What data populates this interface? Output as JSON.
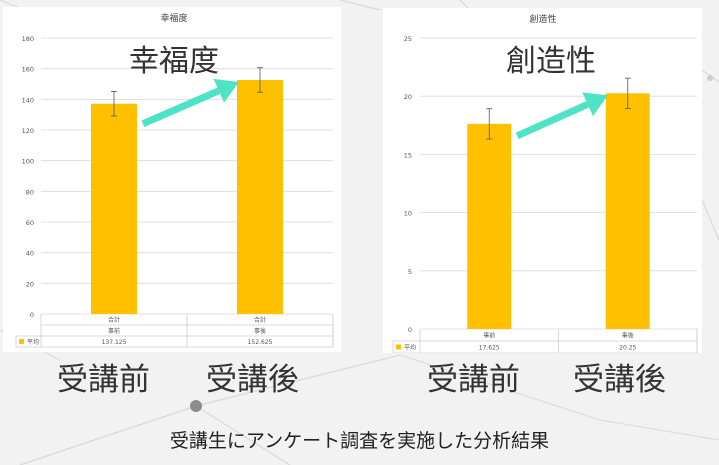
{
  "chart_data": [
    {
      "type": "bar",
      "title": "幸福度",
      "overlay_title": "幸福度",
      "ylim": [
        0,
        180
      ],
      "yticks": [
        0,
        20,
        40,
        60,
        80,
        100,
        120,
        140,
        160,
        180
      ],
      "categories": [
        {
          "top": "合計",
          "bottom": "事前"
        },
        {
          "top": "合計",
          "bottom": "事後"
        }
      ],
      "series": [
        {
          "name": "平均",
          "values": [
            137.125,
            152.625
          ],
          "labels": [
            "137.125",
            "152.625"
          ],
          "error": [
            8,
            8
          ]
        }
      ],
      "bar_color": "#ffc000",
      "grid": true
    },
    {
      "type": "bar",
      "title": "創造性",
      "overlay_title": "創造性",
      "ylim": [
        0,
        25
      ],
      "yticks": [
        0,
        5,
        10,
        15,
        20,
        25
      ],
      "categories": [
        {
          "top": "",
          "bottom": "事前"
        },
        {
          "top": "",
          "bottom": "事後"
        }
      ],
      "series": [
        {
          "name": "平均",
          "values": [
            17.625,
            20.25
          ],
          "labels": [
            "17.625",
            "20.25"
          ],
          "error": [
            1.3,
            1.3
          ]
        }
      ],
      "bar_color": "#ffc000",
      "grid": true
    }
  ],
  "labels": {
    "left_pre": "受講前",
    "left_post": "受講後",
    "right_pre": "受講前",
    "right_post": "受講後"
  },
  "caption": "受講生にアンケート調査を実施した分析結果",
  "colors": {
    "bar": "#ffc000",
    "arrow": "#4de3c4",
    "background": "#f2f2f2"
  }
}
